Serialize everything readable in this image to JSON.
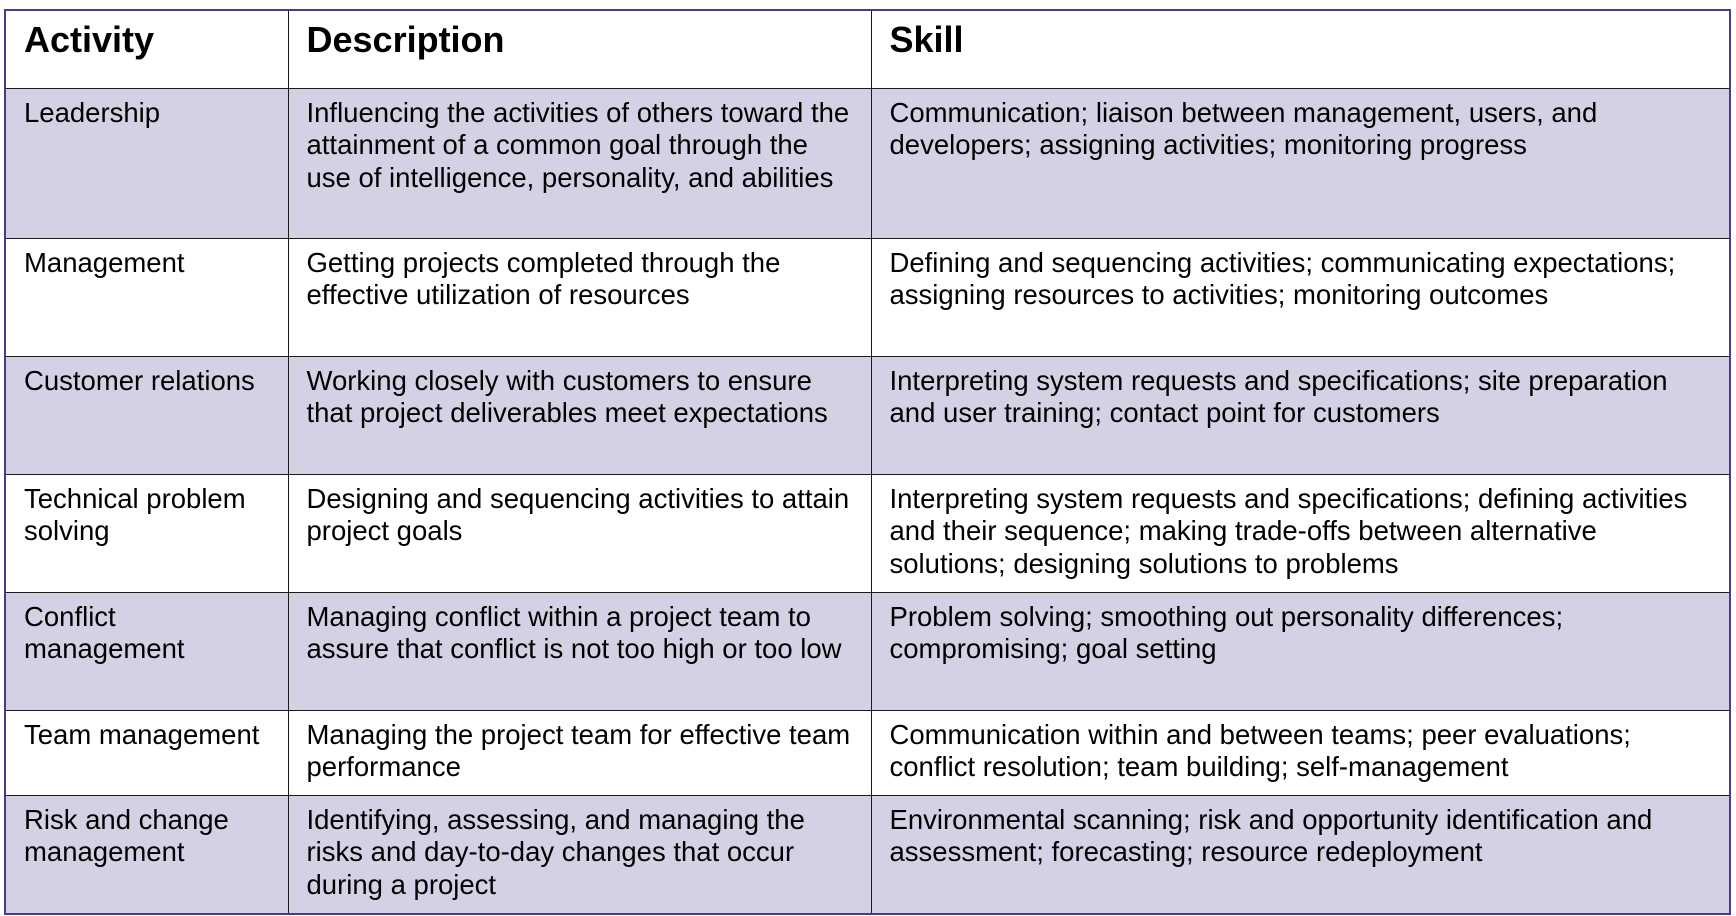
{
  "table": {
    "headers": [
      "Activity",
      "Description",
      "Skill"
    ],
    "rows": [
      {
        "activity": "Leadership",
        "description": "Influencing the activities of others toward the attainment of a common goal through the use of intelligence, personality, and abilities",
        "skill": "Communication; liaison between management, users, and developers; assigning activities; monitoring progress"
      },
      {
        "activity": "Management",
        "description": "Getting projects completed through the effective utilization of resources",
        "skill": "Defining and sequencing activities; communicating expectations; assigning resources to activities; monitoring outcomes"
      },
      {
        "activity": "Customer relations",
        "description": "Working closely with customers to ensure that project deliverables meet expectations",
        "skill": "Interpreting system requests and specifications; site preparation and user training; contact point for customers"
      },
      {
        "activity": "Technical problem solving",
        "description": "Designing and sequencing activities to attain project goals",
        "skill": "Interpreting system requests and specifications; defining activities and their sequence; making trade-offs between alternative solutions; designing solutions to problems"
      },
      {
        "activity": "Conflict management",
        "description": "Managing conflict within a project team to assure that conflict is not too high or too low",
        "skill": "Problem solving; smoothing out personality differences; compromising; goal setting"
      },
      {
        "activity": "Team management",
        "description": "Managing the project team for effective team performance",
        "skill": "Communication within and between teams; peer evaluations; conflict resolution; team building; self-management"
      },
      {
        "activity": "Risk and change management",
        "description": "Identifying, assessing, and managing the risks and day-to-day changes that occur during a project",
        "skill": "Environmental scanning; risk and opportunity identification and assessment; forecasting; resource redeployment"
      }
    ]
  },
  "colors": {
    "shaded_row": "#d5d1e4",
    "border_outer": "#4b3a8c",
    "border_inner": "#1a1a1a"
  }
}
